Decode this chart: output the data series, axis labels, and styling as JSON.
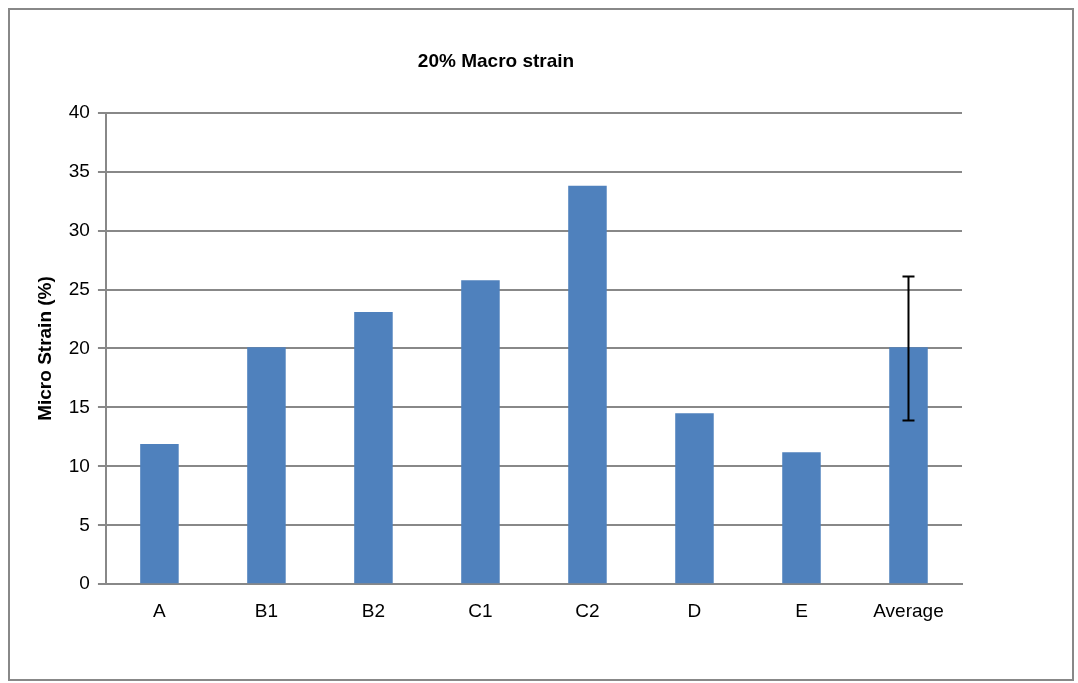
{
  "chart_data": {
    "type": "bar",
    "title": "20% Macro strain",
    "ylabel": "Micro Strain (%)",
    "categories": [
      "A",
      "B1",
      "B2",
      "C1",
      "C2",
      "D",
      "E",
      "Average"
    ],
    "values": [
      11.9,
      20.1,
      23.1,
      25.8,
      33.8,
      14.5,
      11.2,
      20.1
    ],
    "errors": [
      null,
      null,
      null,
      null,
      null,
      null,
      null,
      [
        13.9,
        26.1
      ]
    ],
    "color": "#4f81bd",
    "ylim": [
      0,
      40
    ],
    "yticks": [
      0,
      5,
      10,
      15,
      20,
      25,
      30,
      35,
      40
    ],
    "grid": "y",
    "legend": false
  }
}
